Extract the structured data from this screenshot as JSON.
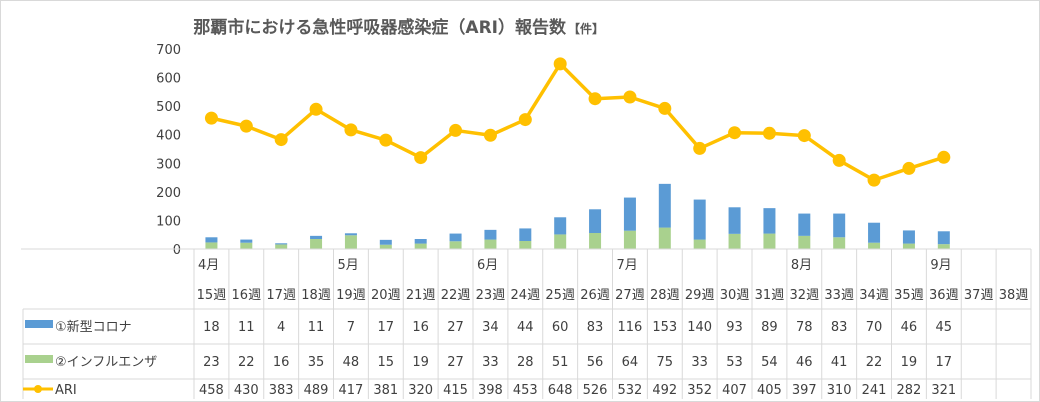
{
  "chart_data": {
    "type": "bar+line",
    "title": "那覇市における急性呼吸器感染症（ARI）報告数",
    "title_unit": "【件】",
    "ylim": [
      0,
      700
    ],
    "yticks": [
      0,
      100,
      200,
      300,
      400,
      500,
      600,
      700
    ],
    "grid": false,
    "categories": [
      "15週",
      "16週",
      "17週",
      "18週",
      "19週",
      "20週",
      "21週",
      "22週",
      "23週",
      "24週",
      "25週",
      "26週",
      "27週",
      "28週",
      "29週",
      "30週",
      "31週",
      "32週",
      "33週",
      "34週",
      "35週",
      "36週",
      "37週",
      "38週"
    ],
    "month_labels": {
      "0": "4月",
      "4": "5月",
      "8": "6月",
      "12": "7月",
      "17": "8月",
      "21": "9月"
    },
    "series": [
      {
        "name": "①新型コロナ",
        "type": "stacked-bar",
        "color": "#5b9bd5",
        "values": [
          18,
          11,
          4,
          11,
          7,
          17,
          16,
          27,
          34,
          44,
          60,
          83,
          116,
          153,
          140,
          93,
          89,
          78,
          83,
          70,
          46,
          45,
          null,
          null
        ]
      },
      {
        "name": "②インフルエンザ",
        "type": "stacked-bar",
        "color": "#a9d18e",
        "values": [
          23,
          22,
          16,
          35,
          48,
          15,
          19,
          27,
          33,
          28,
          51,
          56,
          64,
          75,
          33,
          53,
          54,
          46,
          41,
          22,
          19,
          17,
          null,
          null
        ]
      },
      {
        "name": "ARI",
        "type": "line",
        "color": "#ffc000",
        "values": [
          458,
          430,
          383,
          489,
          417,
          381,
          320,
          415,
          398,
          453,
          648,
          526,
          532,
          492,
          352,
          407,
          405,
          397,
          310,
          241,
          282,
          321,
          null,
          null
        ]
      }
    ],
    "legend": "data-table-left"
  }
}
